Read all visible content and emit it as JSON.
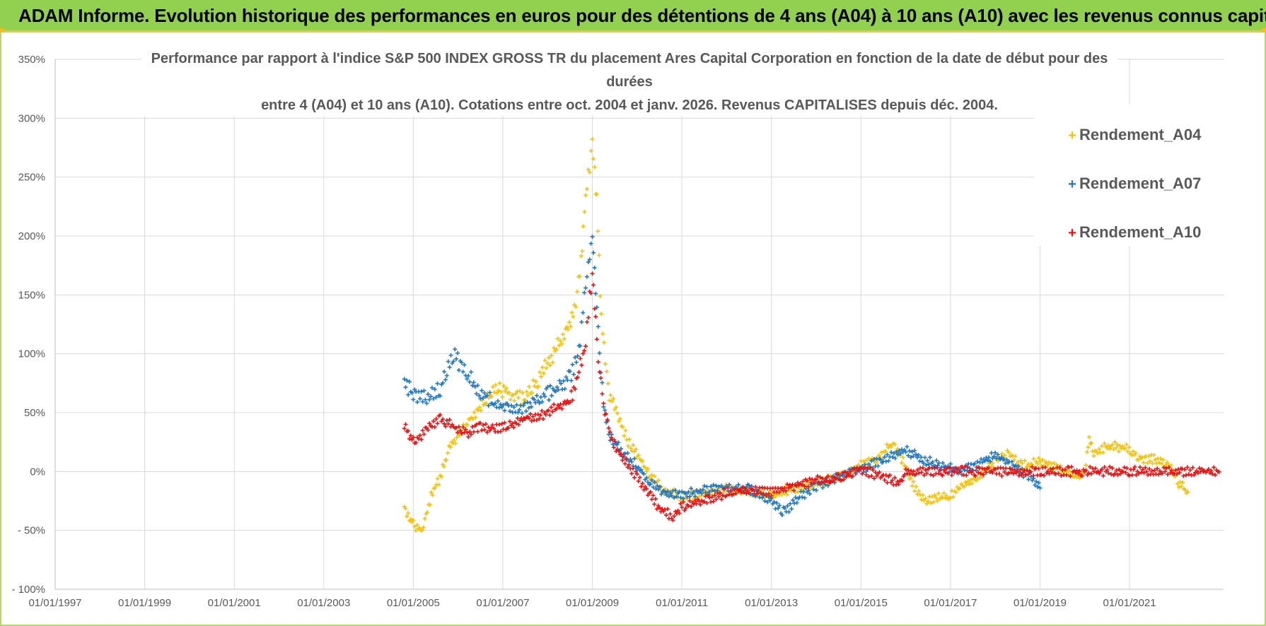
{
  "header": {
    "title": "ADAM Informe. Evolution historique des performances en euros pour des détentions de 4 ans (A04) à 10 ans (A10) avec les revenus connus capitalisés"
  },
  "colors": {
    "header_bg": "#92d050",
    "a04": "#f6c20b",
    "a07": "#1f78c8",
    "a10": "#ee1111",
    "grid": "#d9d9d9"
  },
  "chart_data": {
    "type": "scatter",
    "title_lines": [
      "Performance par rapport à l'indice S&P 500 INDEX GROSS TR  du placement Ares Capital Corporation en fonction de la date de début pour des",
      "durées",
      "entre 4 (A04) et 10 ans (A10).  Cotations entre oct. 2004 et janv. 2026.  Revenus CAPITALISES depuis déc. 2004."
    ],
    "x_tick_labels": [
      "01/01/1997",
      "01/01/1999",
      "01/01/2001",
      "01/01/2003",
      "01/01/2005",
      "01/01/2007",
      "01/01/2009",
      "01/01/2011",
      "01/01/2013",
      "01/01/2015",
      "01/01/2017",
      "01/01/2019",
      "01/01/2021"
    ],
    "x_tick_years": [
      1997,
      1999,
      2001,
      2003,
      2005,
      2007,
      2009,
      2011,
      2013,
      2015,
      2017,
      2019,
      2021
    ],
    "xlim": [
      1997,
      2023.1
    ],
    "y_tick_labels": [
      "350%",
      "300%",
      "250%",
      "200%",
      "150%",
      "100%",
      "50%",
      "0%",
      "- 50%",
      "- 100%"
    ],
    "y_tick_values": [
      350,
      300,
      250,
      200,
      150,
      100,
      50,
      0,
      -50,
      -100
    ],
    "ylim": [
      -100,
      350
    ],
    "legend_position": "top-right",
    "series": [
      {
        "name": "Rendement_A04",
        "color": "#f6c20b",
        "points": [
          [
            2004.8,
            -30
          ],
          [
            2005.0,
            -45
          ],
          [
            2005.2,
            -50
          ],
          [
            2005.4,
            -20
          ],
          [
            2005.6,
            -5
          ],
          [
            2005.8,
            20
          ],
          [
            2006.0,
            30
          ],
          [
            2006.3,
            45
          ],
          [
            2006.6,
            60
          ],
          [
            2006.9,
            72
          ],
          [
            2007.2,
            65
          ],
          [
            2007.5,
            62
          ],
          [
            2007.8,
            78
          ],
          [
            2008.0,
            92
          ],
          [
            2008.2,
            105
          ],
          [
            2008.4,
            118
          ],
          [
            2008.6,
            135
          ],
          [
            2008.75,
            180
          ],
          [
            2008.85,
            230
          ],
          [
            2009.0,
            280
          ],
          [
            2009.1,
            230
          ],
          [
            2009.2,
            130
          ],
          [
            2009.35,
            70
          ],
          [
            2009.5,
            55
          ],
          [
            2009.8,
            25
          ],
          [
            2010.0,
            15
          ],
          [
            2010.3,
            -5
          ],
          [
            2010.6,
            -15
          ],
          [
            2011.0,
            -22
          ],
          [
            2011.5,
            -18
          ],
          [
            2012.0,
            -15
          ],
          [
            2012.5,
            -18
          ],
          [
            2013.0,
            -20
          ],
          [
            2013.5,
            -15
          ],
          [
            2014.0,
            -10
          ],
          [
            2014.5,
            -5
          ],
          [
            2015.0,
            5
          ],
          [
            2015.4,
            10
          ],
          [
            2015.7,
            25
          ],
          [
            2016.0,
            5
          ],
          [
            2016.2,
            -15
          ],
          [
            2016.5,
            -25
          ],
          [
            2017.0,
            -20
          ],
          [
            2017.3,
            -10
          ],
          [
            2017.6,
            -5
          ],
          [
            2018.0,
            8
          ],
          [
            2018.3,
            15
          ],
          [
            2018.6,
            5
          ],
          [
            2019.0,
            8
          ],
          [
            2019.4,
            3
          ],
          [
            2019.8,
            -5
          ],
          [
            2020.0,
            0
          ],
          [
            2020.1,
            30
          ],
          [
            2020.2,
            15
          ],
          [
            2020.5,
            22
          ],
          [
            2020.9,
            20
          ],
          [
            2021.2,
            12
          ],
          [
            2021.6,
            10
          ],
          [
            2021.9,
            5
          ],
          [
            2022.1,
            -10
          ],
          [
            2022.3,
            -18
          ]
        ]
      },
      {
        "name": "Rendement_A07",
        "color": "#1f78c8",
        "points": [
          [
            2004.8,
            75
          ],
          [
            2005.0,
            65
          ],
          [
            2005.3,
            62
          ],
          [
            2005.6,
            70
          ],
          [
            2005.9,
            100
          ],
          [
            2006.2,
            82
          ],
          [
            2006.5,
            68
          ],
          [
            2006.8,
            58
          ],
          [
            2007.1,
            55
          ],
          [
            2007.4,
            52
          ],
          [
            2007.7,
            60
          ],
          [
            2008.0,
            65
          ],
          [
            2008.3,
            72
          ],
          [
            2008.5,
            80
          ],
          [
            2008.7,
            100
          ],
          [
            2008.85,
            160
          ],
          [
            2009.0,
            200
          ],
          [
            2009.1,
            140
          ],
          [
            2009.25,
            55
          ],
          [
            2009.4,
            30
          ],
          [
            2009.7,
            15
          ],
          [
            2010.0,
            5
          ],
          [
            2010.3,
            -10
          ],
          [
            2010.6,
            -18
          ],
          [
            2011.0,
            -20
          ],
          [
            2011.5,
            -16
          ],
          [
            2012.0,
            -14
          ],
          [
            2012.5,
            -15
          ],
          [
            2013.0,
            -25
          ],
          [
            2013.3,
            -35
          ],
          [
            2013.6,
            -22
          ],
          [
            2014.0,
            -12
          ],
          [
            2014.5,
            -5
          ],
          [
            2015.0,
            2
          ],
          [
            2015.5,
            10
          ],
          [
            2016.0,
            18
          ],
          [
            2016.4,
            10
          ],
          [
            2016.8,
            5
          ],
          [
            2017.2,
            0
          ],
          [
            2017.6,
            5
          ],
          [
            2018.0,
            15
          ],
          [
            2018.4,
            5
          ],
          [
            2018.8,
            -5
          ],
          [
            2019.0,
            -15
          ]
        ]
      },
      {
        "name": "Rendement_A10",
        "color": "#ee1111",
        "points": [
          [
            2004.8,
            40
          ],
          [
            2005.0,
            25
          ],
          [
            2005.3,
            35
          ],
          [
            2005.6,
            45
          ],
          [
            2005.9,
            38
          ],
          [
            2006.2,
            32
          ],
          [
            2006.5,
            38
          ],
          [
            2006.8,
            36
          ],
          [
            2007.1,
            38
          ],
          [
            2007.5,
            45
          ],
          [
            2007.9,
            48
          ],
          [
            2008.2,
            55
          ],
          [
            2008.5,
            60
          ],
          [
            2008.7,
            85
          ],
          [
            2008.85,
            110
          ],
          [
            2009.0,
            170
          ],
          [
            2009.1,
            110
          ],
          [
            2009.25,
            55
          ],
          [
            2009.45,
            25
          ],
          [
            2009.7,
            10
          ],
          [
            2010.0,
            -5
          ],
          [
            2010.3,
            -20
          ],
          [
            2010.5,
            -32
          ],
          [
            2010.8,
            -38
          ],
          [
            2011.0,
            -30
          ],
          [
            2011.5,
            -25
          ],
          [
            2012.0,
            -18
          ],
          [
            2012.5,
            -15
          ],
          [
            2013.0,
            -18
          ],
          [
            2013.5,
            -12
          ],
          [
            2014.0,
            -8
          ],
          [
            2014.5,
            -5
          ],
          [
            2015.0,
            2
          ],
          [
            2015.5,
            -5
          ],
          [
            2015.9,
            -10
          ],
          [
            2016.0,
            0
          ],
          [
            2017.0,
            0
          ],
          [
            2018.0,
            0
          ],
          [
            2019.0,
            0
          ],
          [
            2020.0,
            0
          ],
          [
            2021.0,
            0
          ],
          [
            2022.0,
            0
          ],
          [
            2023.0,
            0
          ]
        ]
      }
    ]
  }
}
